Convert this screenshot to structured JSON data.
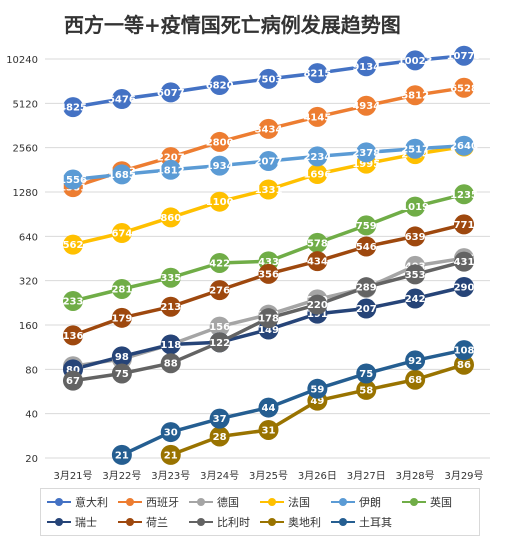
{
  "chart_data": {
    "type": "line",
    "title": "西方一等+疫情国死亡病例发展趋势图",
    "y_scale": "log2",
    "y_ticks": [
      20,
      40,
      80,
      160,
      320,
      640,
      1280,
      2560,
      5120,
      10240
    ],
    "x": [
      "3月21号",
      "3月22号",
      "3月23号",
      "3月24号",
      "3月25号",
      "3月26日",
      "3月27日",
      "3月28号",
      "3月29号"
    ],
    "grid": true,
    "legend_position": "bottom",
    "series": [
      {
        "name": "意大利",
        "color": "#4472c4",
        "values": [
          4825,
          5476,
          6077,
          6820,
          7503,
          8215,
          9134,
          10023,
          10779
        ]
      },
      {
        "name": "西班牙",
        "color": "#ed7d31",
        "values": [
          1381,
          1772,
          2207,
          2800,
          3434,
          4145,
          4934,
          5812,
          6528
        ]
      },
      {
        "name": "德国",
        "color": "#a5a5a5",
        "values": [
          84,
          94,
          118,
          156,
          188,
          239,
          286,
          403,
          455
        ]
      },
      {
        "name": "法国",
        "color": "#ffc000",
        "values": [
          562,
          674,
          860,
          1100,
          1331,
          1696,
          1995,
          2314,
          2606
        ]
      },
      {
        "name": "伊朗",
        "color": "#5b9bd5",
        "values": [
          1556,
          1685,
          1812,
          1934,
          2077,
          2234,
          2378,
          2517,
          2640
        ]
      },
      {
        "name": "英国",
        "color": "#70ad47",
        "values": [
          233,
          281,
          335,
          422,
          433,
          578,
          759,
          1019,
          1235
        ]
      },
      {
        "name": "瑞士",
        "color": "#264478",
        "values": [
          80,
          98,
          118,
          122,
          149,
          191,
          207,
          242,
          290
        ]
      },
      {
        "name": "荷兰",
        "color": "#9e480e",
        "values": [
          136,
          179,
          213,
          276,
          356,
          434,
          546,
          639,
          771
        ]
      },
      {
        "name": "比利时",
        "color": "#636363",
        "values": [
          67,
          75,
          88,
          122,
          178,
          220,
          289,
          353,
          431
        ]
      },
      {
        "name": "奥地利",
        "color": "#997300",
        "values": [
          null,
          null,
          21,
          28,
          31,
          49,
          58,
          68,
          86
        ]
      },
      {
        "name": "土耳其",
        "color": "#255e91",
        "values": [
          null,
          21,
          30,
          37,
          44,
          59,
          75,
          92,
          108
        ]
      }
    ]
  }
}
